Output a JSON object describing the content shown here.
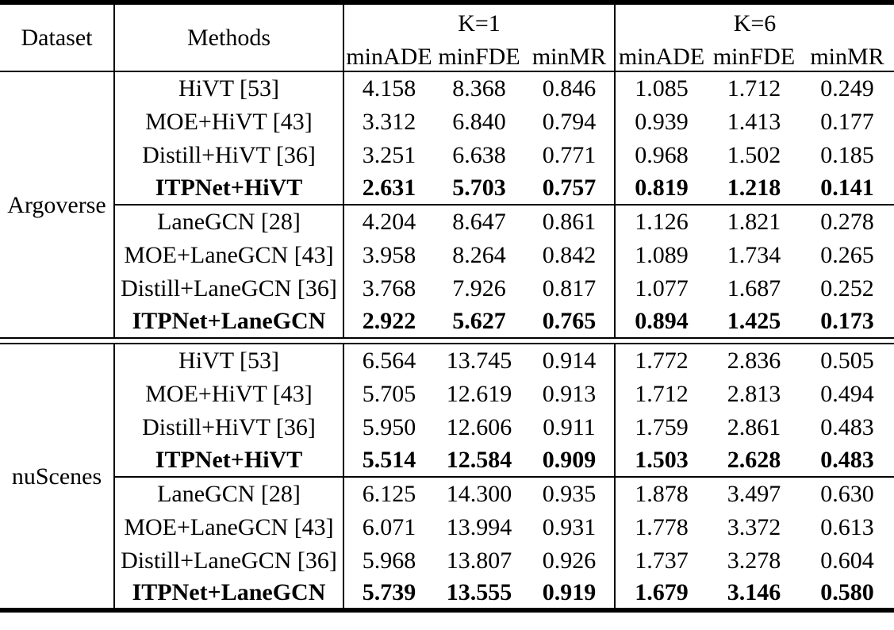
{
  "page": {
    "background": "#ffffff",
    "text_color": "#000000",
    "rule_color": "#000000"
  },
  "table": {
    "header": {
      "dataset": "Dataset",
      "methods": "Methods",
      "k1": "K=1",
      "k6": "K=6",
      "metrics_k1": [
        "minADE",
        "minFDE",
        "minMR"
      ],
      "metrics_k6": [
        "minADE",
        "minFDE",
        "minMR"
      ]
    },
    "sections": [
      {
        "dataset": "Argoverse",
        "rows": [
          {
            "method": "HiVT [53]",
            "bold": false,
            "values": [
              "4.158",
              "8.368",
              "0.846",
              "1.085",
              "1.712",
              "0.249"
            ]
          },
          {
            "method": "MOE+HiVT [43]",
            "bold": false,
            "values": [
              "3.312",
              "6.840",
              "0.794",
              "0.939",
              "1.413",
              "0.177"
            ]
          },
          {
            "method": "Distill+HiVT [36]",
            "bold": false,
            "values": [
              "3.251",
              "6.638",
              "0.771",
              "0.968",
              "1.502",
              "0.185"
            ]
          },
          {
            "method": "ITPNet+HiVT",
            "bold": true,
            "values": [
              "2.631",
              "5.703",
              "0.757",
              "0.819",
              "1.218",
              "0.141"
            ]
          },
          {
            "method": "LaneGCN [28]",
            "bold": false,
            "values": [
              "4.204",
              "8.647",
              "0.861",
              "1.126",
              "1.821",
              "0.278"
            ]
          },
          {
            "method": "MOE+LaneGCN [43]",
            "bold": false,
            "values": [
              "3.958",
              "8.264",
              "0.842",
              "1.089",
              "1.734",
              "0.265"
            ]
          },
          {
            "method": "Distill+LaneGCN [36]",
            "bold": false,
            "values": [
              "3.768",
              "7.926",
              "0.817",
              "1.077",
              "1.687",
              "0.252"
            ]
          },
          {
            "method": "ITPNet+LaneGCN",
            "bold": true,
            "values": [
              "2.922",
              "5.627",
              "0.765",
              "0.894",
              "1.425",
              "0.173"
            ]
          }
        ]
      },
      {
        "dataset": "nuScenes",
        "rows": [
          {
            "method": "HiVT [53]",
            "bold": false,
            "values": [
              "6.564",
              "13.745",
              "0.914",
              "1.772",
              "2.836",
              "0.505"
            ]
          },
          {
            "method": "MOE+HiVT [43]",
            "bold": false,
            "values": [
              "5.705",
              "12.619",
              "0.913",
              "1.712",
              "2.813",
              "0.494"
            ]
          },
          {
            "method": "Distill+HiVT [36]",
            "bold": false,
            "values": [
              "5.950",
              "12.606",
              "0.911",
              "1.759",
              "2.861",
              "0.483"
            ]
          },
          {
            "method": "ITPNet+HiVT",
            "bold": true,
            "values": [
              "5.514",
              "12.584",
              "0.909",
              "1.503",
              "2.628",
              "0.483"
            ]
          },
          {
            "method": "LaneGCN [28]",
            "bold": false,
            "values": [
              "6.125",
              "14.300",
              "0.935",
              "1.878",
              "3.497",
              "0.630"
            ]
          },
          {
            "method": "MOE+LaneGCN [43]",
            "bold": false,
            "values": [
              "6.071",
              "13.994",
              "0.931",
              "1.778",
              "3.372",
              "0.613"
            ]
          },
          {
            "method": "Distill+LaneGCN [36]",
            "bold": false,
            "values": [
              "5.968",
              "13.807",
              "0.926",
              "1.737",
              "3.278",
              "0.604"
            ]
          },
          {
            "method": "ITPNet+LaneGCN",
            "bold": true,
            "values": [
              "5.739",
              "13.555",
              "0.919",
              "1.679",
              "3.146",
              "0.580"
            ]
          }
        ]
      }
    ]
  }
}
